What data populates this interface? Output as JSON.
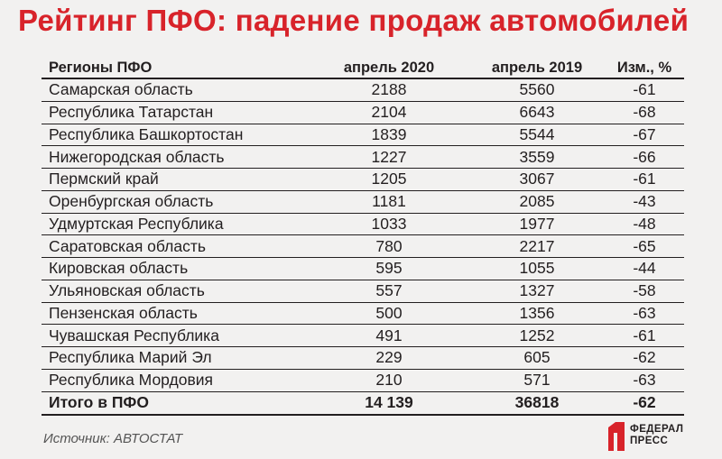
{
  "title": "Рейтинг ПФО: падение продаж автомобилей",
  "table": {
    "headers": [
      "Регионы ПФО",
      "апрель 2020",
      "апрель 2019",
      "Изм., %"
    ],
    "rows": [
      [
        "Самарская область",
        "2188",
        "5560",
        "-61"
      ],
      [
        "Республика Татарстан",
        "2104",
        "6643",
        "-68"
      ],
      [
        "Республика Башкортостан",
        "1839",
        "5544",
        "-67"
      ],
      [
        "Нижегородская область",
        "1227",
        "3559",
        "-66"
      ],
      [
        "Пермский край",
        "1205",
        "3067",
        "-61"
      ],
      [
        "Оренбургская область",
        "1181",
        "2085",
        "-43"
      ],
      [
        "Удмуртская Республика",
        "1033",
        "1977",
        "-48"
      ],
      [
        "Саратовская область",
        "780",
        "2217",
        "-65"
      ],
      [
        "Кировская область",
        "595",
        "1055",
        "-44"
      ],
      [
        "Ульяновская область",
        "557",
        "1327",
        "-58"
      ],
      [
        "Пензенская область",
        "500",
        "1356",
        "-63"
      ],
      [
        "Чувашская Республика",
        "491",
        "1252",
        "-61"
      ],
      [
        "Республика Марий Эл",
        "229",
        "605",
        "-62"
      ],
      [
        "Республика Мордовия",
        "210",
        "571",
        "-63"
      ]
    ],
    "total": [
      "Итого в ПФО",
      "14 139",
      "36818",
      "-62"
    ]
  },
  "source": "Источник: АВТОСТАТ",
  "logo": {
    "line1": "ФЕДЕРАЛ",
    "line2": "ПРЕСС",
    "icon": "federalpress-logo-icon"
  },
  "colors": {
    "title": "#d8232a",
    "logo_red": "#d8232a",
    "background": "#f2f1f0"
  }
}
